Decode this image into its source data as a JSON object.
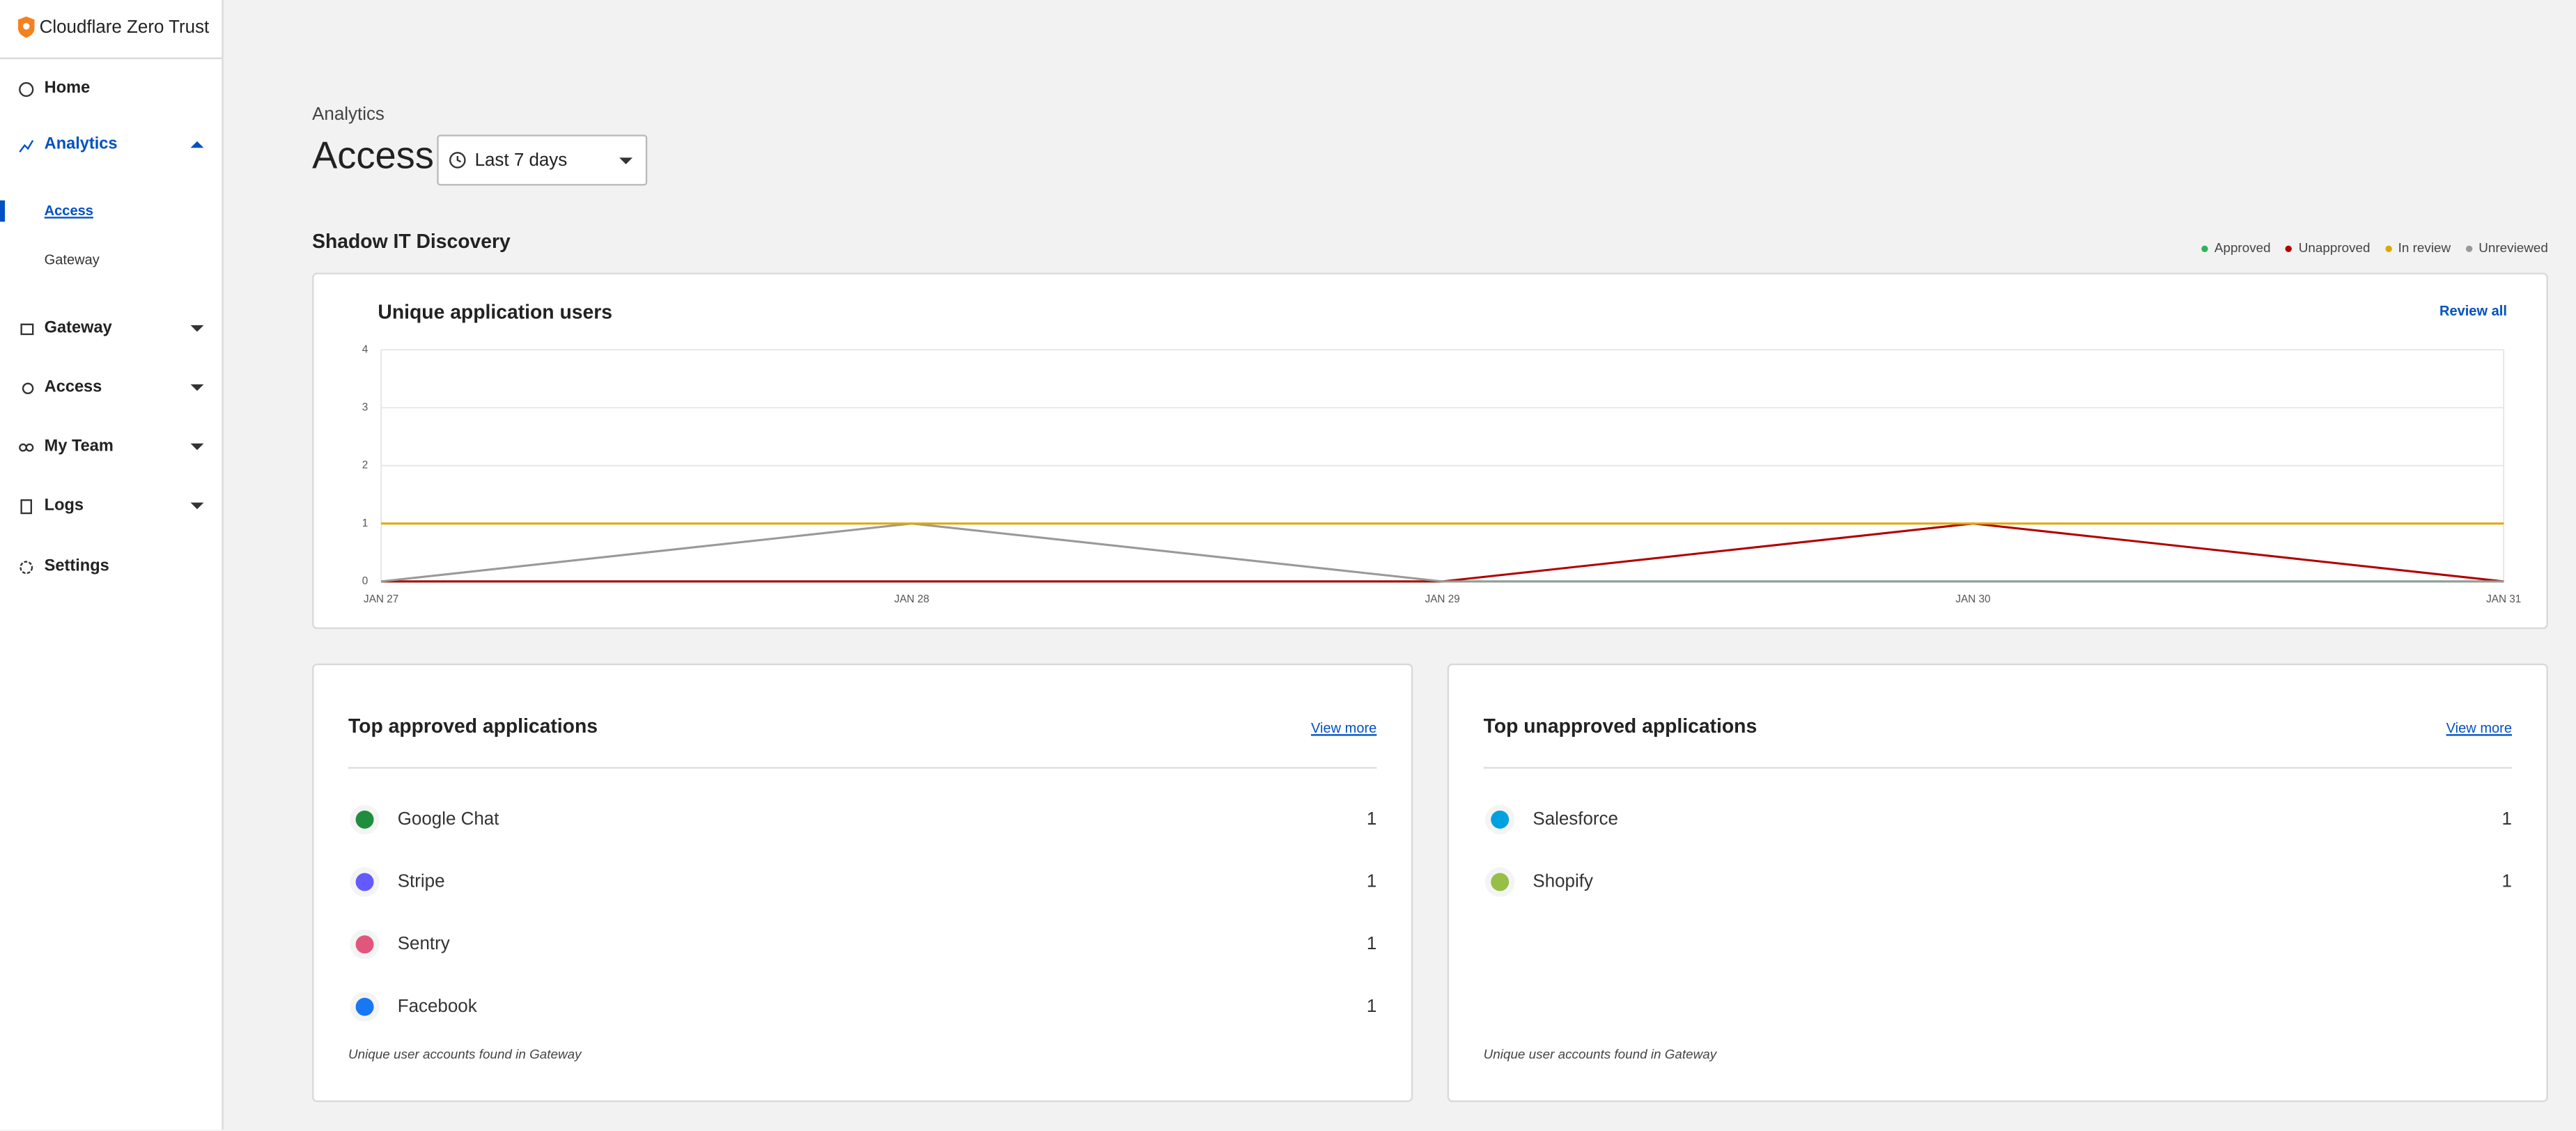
{
  "sidebar": {
    "brand": "Cloudflare Zero Trust",
    "nav": [
      "Home",
      "Analytics",
      "Gateway",
      "Access",
      "My Team",
      "Logs",
      "Settings"
    ],
    "analytics_sub": [
      "Access",
      "Gateway"
    ]
  },
  "header": {
    "breadcrumb": "Analytics",
    "title": "Access",
    "range": "Last 7 days"
  },
  "section_title": "Shadow IT Discovery",
  "chart_data": {
    "type": "line",
    "title": "Unique application users",
    "action": "Review all",
    "categories": [
      "JAN 27",
      "JAN 28",
      "JAN 29",
      "JAN 30",
      "JAN 31"
    ],
    "series": [
      {
        "name": "Approved",
        "color": "#2db35d",
        "values": [
          0,
          0,
          0,
          0,
          0
        ]
      },
      {
        "name": "Unapproved",
        "color": "#b20000",
        "values": [
          0,
          0,
          0,
          1,
          0
        ]
      },
      {
        "name": "In review",
        "color": "#e2a600",
        "values": [
          1,
          1,
          1,
          1,
          1
        ]
      },
      {
        "name": "Unreviewed",
        "color": "#999999",
        "values": [
          0,
          1,
          0,
          0,
          0
        ]
      }
    ],
    "draw_order": [
      0,
      1,
      3,
      2
    ],
    "ylim": [
      0,
      4
    ],
    "yticks": [
      0,
      1,
      2,
      3,
      4
    ],
    "grid": true
  },
  "approved": {
    "title": "Top approved applications",
    "link": "View more",
    "items": [
      {
        "name": "Google Chat",
        "count": "1"
      },
      {
        "name": "Stripe",
        "count": "1"
      },
      {
        "name": "Sentry",
        "count": "1"
      },
      {
        "name": "Facebook",
        "count": "1"
      }
    ],
    "footer": "Unique user accounts found in Gateway"
  },
  "unapproved": {
    "title": "Top unapproved applications",
    "link": "View more",
    "items": [
      {
        "name": "Salesforce",
        "count": "1"
      },
      {
        "name": "Shopify",
        "count": "1"
      }
    ],
    "footer": "Unique user accounts found in Gateway"
  }
}
